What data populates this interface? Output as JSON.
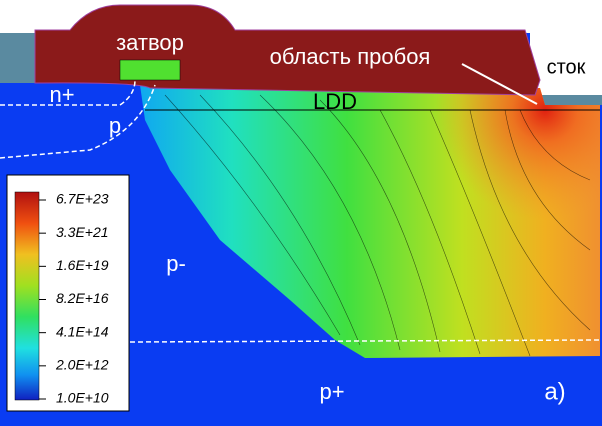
{
  "labels": {
    "gate": "затвор",
    "breakdown": "область пробоя",
    "drain": "сток",
    "n_plus": "n+",
    "p": "p",
    "ldd": "LDD",
    "p_minus": "p-",
    "p_plus": "p+",
    "panel": "а)"
  },
  "colorbar": {
    "labels": [
      "6.7E+23",
      "3.3E+21",
      "1.6E+19",
      "8.2E+16",
      "4.1E+14",
      "2.0E+12",
      "1.0E+10"
    ]
  }
}
